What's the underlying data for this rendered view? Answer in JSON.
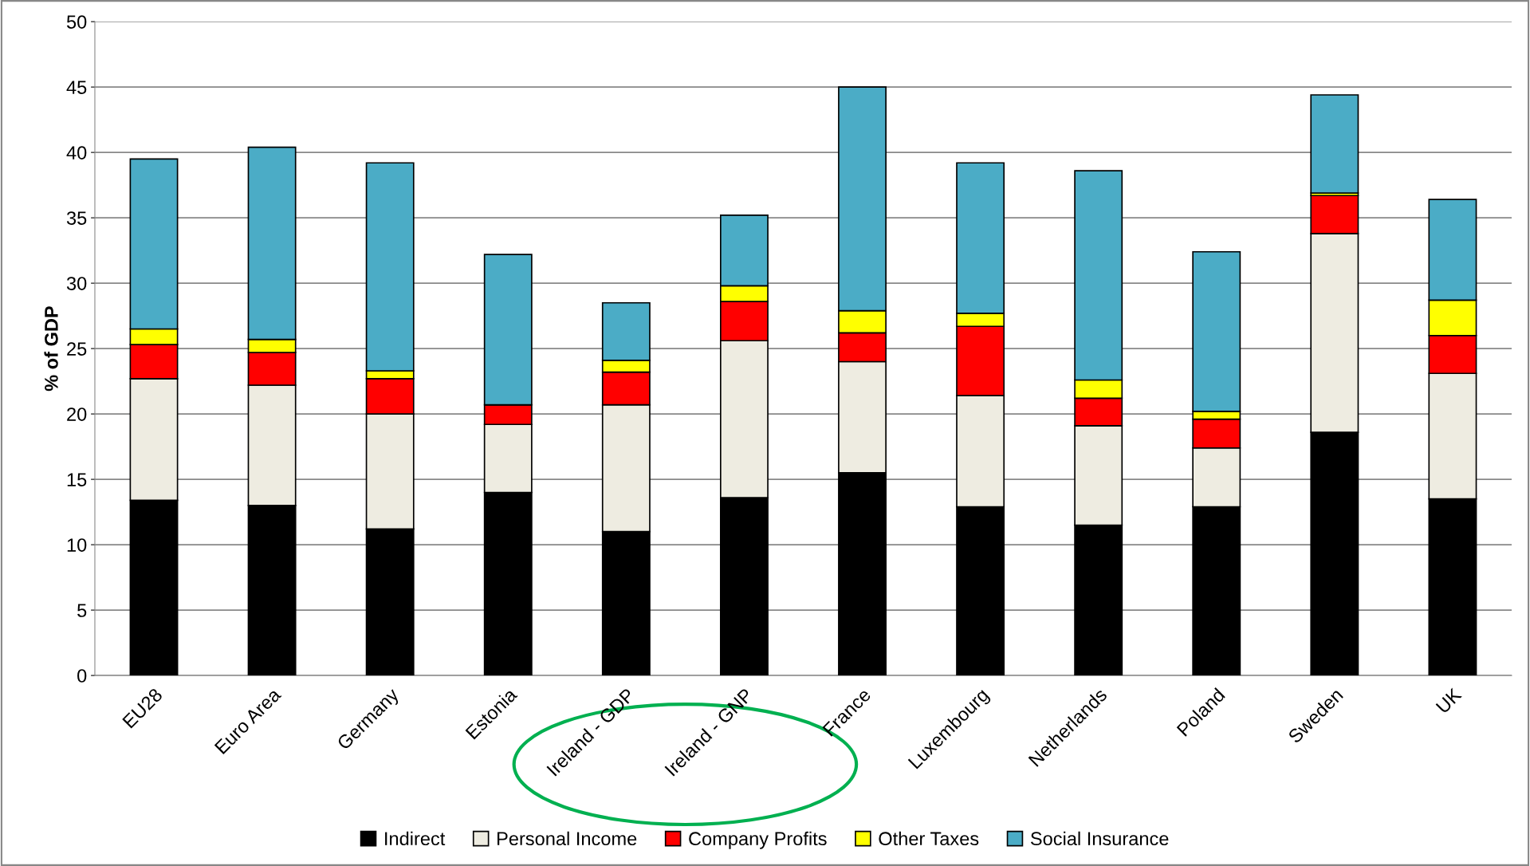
{
  "chart_data": {
    "type": "bar",
    "stacked": true,
    "ylabel": "% of GDP",
    "categories": [
      "EU28",
      "Euro Area",
      "Germany",
      "Estonia",
      "Ireland - GDP",
      "Ireland - GNP",
      "France",
      "Luxembourg",
      "Netherlands",
      "Poland",
      "Sweden",
      "UK"
    ],
    "series": [
      {
        "name": "Indirect",
        "color": "#000000",
        "values": [
          13.4,
          13.0,
          11.2,
          14.0,
          11.0,
          13.6,
          15.5,
          12.9,
          11.5,
          12.9,
          18.6,
          13.5
        ]
      },
      {
        "name": "Personal Income",
        "color": "#eeece1",
        "values": [
          9.3,
          9.2,
          8.8,
          5.2,
          9.7,
          12.0,
          8.5,
          8.5,
          7.6,
          4.5,
          15.2,
          9.6
        ]
      },
      {
        "name": "Company Profits",
        "color": "#ff0000",
        "values": [
          2.6,
          2.5,
          2.7,
          1.5,
          2.5,
          3.0,
          2.2,
          5.3,
          2.1,
          2.2,
          2.9,
          2.9
        ]
      },
      {
        "name": "Other Taxes",
        "color": "#ffff00",
        "values": [
          1.2,
          1.0,
          0.6,
          0.0,
          0.9,
          1.2,
          1.7,
          1.0,
          1.4,
          0.6,
          0.2,
          2.7
        ]
      },
      {
        "name": "Social Insurance",
        "color": "#4bacc6",
        "values": [
          13.0,
          14.7,
          15.9,
          11.5,
          4.4,
          5.4,
          17.1,
          11.5,
          16.0,
          12.2,
          7.5,
          7.7
        ]
      }
    ],
    "ylim": [
      0,
      50
    ],
    "yticks": [
      0,
      5,
      10,
      15,
      20,
      25,
      30,
      35,
      40,
      45,
      50
    ],
    "grid": "y",
    "legend": "bottom"
  }
}
